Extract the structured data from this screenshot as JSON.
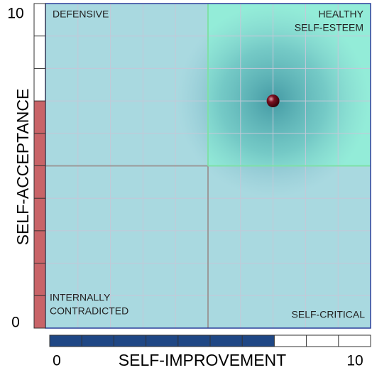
{
  "chart_data": {
    "type": "scatter",
    "x_label": "SELF-IMPROVEMENT",
    "y_label": "SELF-ACCEPTANCE",
    "series": [
      {
        "x": [
          7
        ],
        "values": [
          7
        ],
        "color": "#5a0c1a"
      }
    ],
    "xlim": [
      0,
      10
    ],
    "ylim": [
      0,
      10
    ],
    "xticks": [
      0,
      10
    ],
    "yticks": [
      0,
      10
    ],
    "grid": true,
    "annotations": [
      [
        "DEFENSIVE"
      ],
      [
        "HEALTHY",
        "SELF-ESTEEM"
      ],
      [
        "INTERNALLY",
        "CONTRADICTED"
      ],
      [
        "SELF-CRITICAL"
      ]
    ],
    "background_color": "#a9d9e0",
    "highlight_color": "#93ecd8",
    "x_bar_color": "#1f4785",
    "y_bar_color": "#c86468"
  }
}
